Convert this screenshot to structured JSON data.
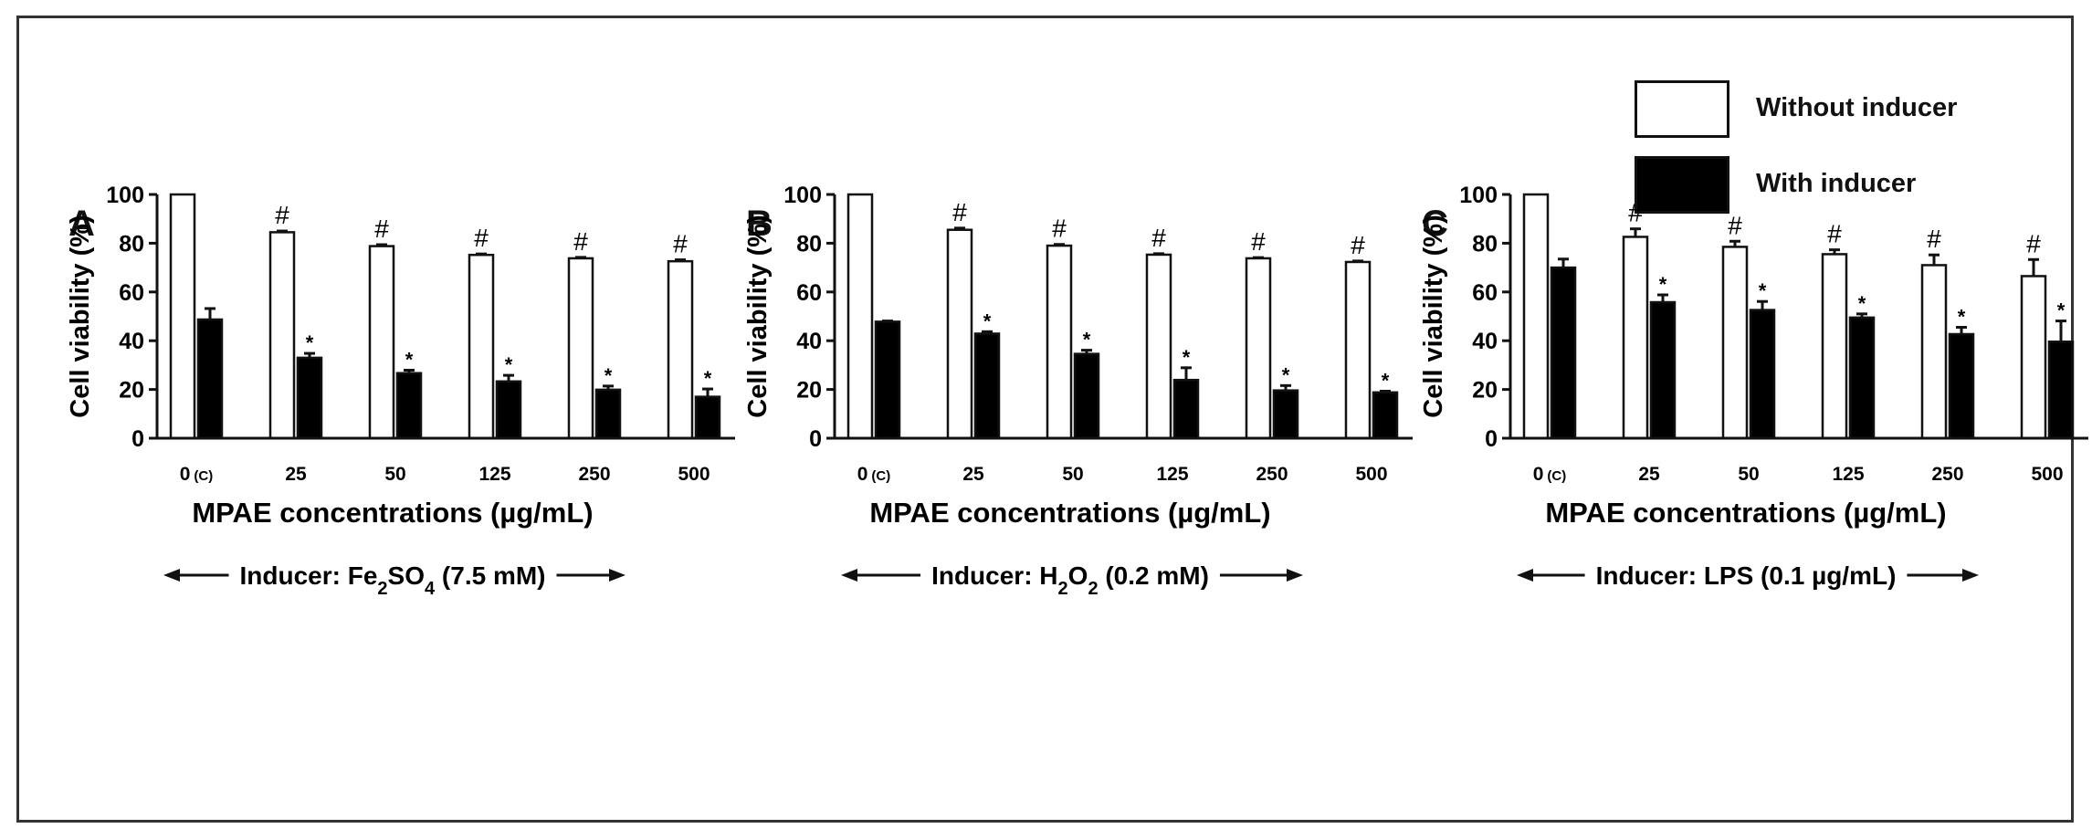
{
  "legend": {
    "without_label": "Without inducer",
    "with_label": "With inducer"
  },
  "colors": {
    "without": "#ffffff",
    "with": "#000000",
    "axis": "#111111"
  },
  "chart_data": [
    {
      "type": "bar",
      "panel_label": "A",
      "categories": [
        "0",
        "25",
        "50",
        "125",
        "250",
        "500"
      ],
      "control_suffix": "(C)",
      "xlabel": "MPAE concentrations (µg/mL)",
      "ylabel": "Cell viability (%)",
      "ylim": [
        0,
        100
      ],
      "yticks": [
        0,
        20,
        40,
        60,
        80,
        100
      ],
      "grid": false,
      "series": [
        {
          "name": "Without inducer",
          "values": [
            100,
            84.5,
            78.8,
            75.2,
            73.8,
            72.6
          ],
          "errors": [
            0,
            0.5,
            0.6,
            0.4,
            0.4,
            0.6
          ],
          "marks": [
            "",
            "#",
            "#",
            "#",
            "#",
            "#"
          ]
        },
        {
          "name": "With inducer",
          "values": [
            48.7,
            33,
            26.7,
            23.3,
            19.9,
            17
          ],
          "errors": [
            4.5,
            1.8,
            1.2,
            2.5,
            1.5,
            3.2
          ],
          "marks": [
            "",
            "*",
            "*",
            "*",
            "*",
            "*"
          ]
        }
      ],
      "inducer": {
        "prefix": "Inducer: Fe",
        "sub1": "2",
        "mid": "SO",
        "sub2": "4",
        "suffix": " (7.5 mM)"
      }
    },
    {
      "type": "bar",
      "panel_label": "B",
      "categories": [
        "0",
        "25",
        "50",
        "125",
        "250",
        "500"
      ],
      "control_suffix": "(C)",
      "xlabel": "MPAE concentrations (µg/mL)",
      "ylabel": "Cell viability (%)",
      "ylim": [
        0,
        100
      ],
      "yticks": [
        0,
        20,
        40,
        60,
        80,
        100
      ],
      "grid": false,
      "series": [
        {
          "name": "Without inducer",
          "values": [
            100,
            85.5,
            79,
            75.3,
            73.8,
            72.3
          ],
          "errors": [
            0,
            0.7,
            0.5,
            0.4,
            0.3,
            0.4
          ],
          "marks": [
            "",
            "#",
            "#",
            "#",
            "#",
            "#"
          ]
        },
        {
          "name": "With inducer",
          "values": [
            47.8,
            42.9,
            34.6,
            23.9,
            19.6,
            18.8
          ],
          "errors": [
            0.3,
            0.8,
            1.5,
            5,
            2,
            0.5
          ],
          "marks": [
            "",
            "*",
            "*",
            "*",
            "*",
            "*"
          ]
        }
      ],
      "inducer": {
        "prefix": "Inducer: H",
        "sub1": "2",
        "mid": "O",
        "sub2": "2",
        "suffix": " (0.2 mM)"
      }
    },
    {
      "type": "bar",
      "panel_label": "C",
      "categories": [
        "0",
        "25",
        "50",
        "125",
        "250",
        "500"
      ],
      "control_suffix": "(C)",
      "xlabel": "MPAE concentrations (µg/mL)",
      "ylabel": "Cell viability (%)",
      "ylim": [
        0,
        100
      ],
      "yticks": [
        0,
        20,
        40,
        60,
        80,
        100
      ],
      "grid": false,
      "series": [
        {
          "name": "Without inducer",
          "values": [
            100,
            82.6,
            78.5,
            75.5,
            71,
            66.5
          ],
          "errors": [
            0,
            3.3,
            2.3,
            1.8,
            4.2,
            6.8
          ],
          "marks": [
            "",
            "#",
            "#",
            "#",
            "#",
            "#"
          ]
        },
        {
          "name": "With inducer",
          "values": [
            70,
            55.8,
            52.6,
            49.5,
            42.7,
            39.6
          ],
          "errors": [
            3.5,
            3,
            3.5,
            1.5,
            2.8,
            8.5
          ],
          "marks": [
            "",
            "*",
            "*",
            "*",
            "*",
            "*"
          ]
        }
      ],
      "inducer": {
        "prefix": "Inducer: LPS (0.1 µg/mL)",
        "sub1": "",
        "mid": "",
        "sub2": "",
        "suffix": ""
      }
    }
  ]
}
